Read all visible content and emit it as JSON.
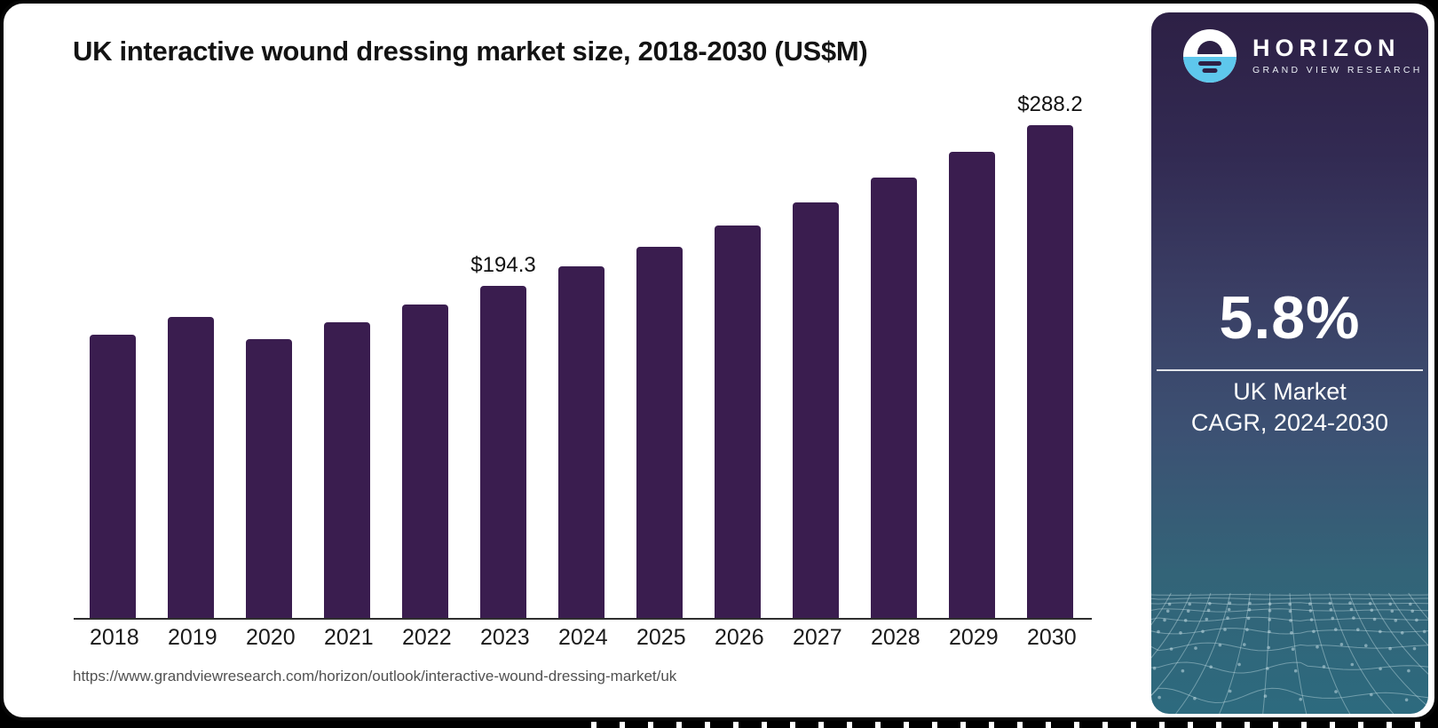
{
  "page": {
    "title": "UK interactive wound dressing market size, 2018-2030 (US$M)",
    "source_url": "https://www.grandviewresearch.com/horizon/outlook/interactive-wound-dressing-market/uk"
  },
  "chart_data": {
    "type": "bar",
    "title": "UK interactive wound dressing market size, 2018-2030 (US$M)",
    "unit": "US$M",
    "categories": [
      "2018",
      "2019",
      "2020",
      "2021",
      "2022",
      "2023",
      "2024",
      "2025",
      "2026",
      "2027",
      "2028",
      "2029",
      "2030"
    ],
    "values": [
      165.8,
      176.2,
      163.5,
      173.1,
      183.4,
      194.3,
      205.8,
      217.4,
      229.7,
      243.3,
      257.4,
      272.4,
      288.2
    ],
    "value_labels": {
      "2023": "$194.3",
      "2030": "$288.2"
    },
    "ylim": [
      0,
      300
    ],
    "bar_color": "#3a1d4f",
    "axis_color": "#2e2e2e",
    "grid": false,
    "legend_position": "none"
  },
  "sidebar": {
    "brand": "HORIZON",
    "brand_sub": "GRAND VIEW RESEARCH",
    "stat_value": "5.8%",
    "stat_caption_line1": "UK Market",
    "stat_caption_line2": "CAGR, 2024-2030",
    "colors": {
      "panel_top": "#2d2045",
      "panel_mid": "#3c5173",
      "panel_bottom": "#2d6a7e",
      "logo_blue": "#5ec7ec"
    }
  }
}
